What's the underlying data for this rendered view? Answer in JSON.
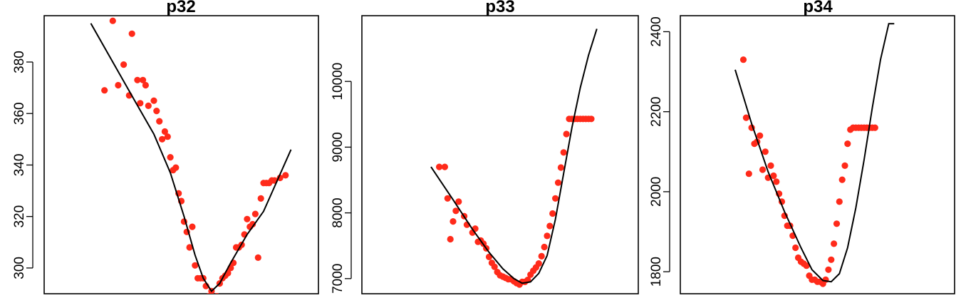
{
  "chart_data": [
    {
      "type": "scatter",
      "title": "p32",
      "yticks": [
        300,
        320,
        340,
        360,
        380
      ],
      "ylim": [
        290,
        398
      ],
      "xlim": [
        0,
        100
      ],
      "series": [
        {
          "kind": "points",
          "color": "#ff2a1a",
          "x": [
            22,
            25,
            27,
            29,
            31,
            32,
            34,
            35,
            36,
            37,
            38,
            40,
            41,
            42,
            43,
            44,
            45,
            46,
            47,
            48,
            49,
            50,
            51,
            52,
            53,
            54,
            55,
            56,
            57,
            58,
            59,
            60,
            61,
            62,
            63,
            64,
            65,
            66,
            67,
            68,
            69,
            70,
            71,
            72,
            73,
            74,
            75,
            76,
            77,
            78,
            79,
            80,
            81,
            82,
            83,
            84,
            86,
            88
          ],
          "y": [
            369,
            396,
            371,
            379,
            367,
            391,
            373,
            364,
            373,
            371,
            363,
            365,
            361,
            357,
            350,
            353,
            351,
            343,
            338,
            339,
            329,
            326,
            318,
            314,
            308,
            316,
            301,
            296,
            296,
            296,
            293,
            289,
            291,
            288,
            289,
            294,
            296,
            297,
            298,
            300,
            302,
            308,
            308,
            309,
            313,
            319,
            316,
            317,
            321,
            304,
            327,
            333,
            333,
            333,
            334,
            334,
            335,
            336
          ]
        },
        {
          "kind": "line",
          "x": [
            17,
            25,
            33,
            40,
            46,
            51,
            55,
            58,
            61,
            64,
            68,
            74,
            80,
            90
          ],
          "y": [
            395,
            380,
            365,
            352,
            337,
            320,
            305,
            296,
            291,
            294,
            302,
            313,
            322,
            346
          ]
        }
      ]
    },
    {
      "type": "scatter",
      "title": "p33",
      "yticks": [
        7000,
        8000,
        9000,
        10000
      ],
      "ylim": [
        6770,
        11000
      ],
      "xlim": [
        0,
        100
      ],
      "series": [
        {
          "kind": "points",
          "color": "#ff2a1a",
          "x": [
            28,
            30,
            31,
            32,
            33,
            34,
            35,
            37,
            38,
            40,
            41,
            42,
            43,
            44,
            45,
            46,
            47,
            48,
            49,
            50,
            51,
            52,
            53,
            54,
            55,
            56,
            57,
            58,
            59,
            60,
            61,
            62,
            63,
            64,
            65,
            66,
            67,
            68,
            69,
            70,
            71,
            72,
            73,
            74,
            75,
            76,
            77,
            78,
            79,
            80,
            81,
            82,
            83
          ],
          "y": [
            8700,
            8700,
            8220,
            7600,
            7870,
            8030,
            8170,
            7950,
            7820,
            7700,
            7760,
            7560,
            7580,
            7530,
            7460,
            7330,
            7240,
            7180,
            7100,
            7050,
            7030,
            7010,
            6990,
            6990,
            6960,
            6930,
            6910,
            6950,
            6950,
            6980,
            7060,
            7120,
            7170,
            7230,
            7340,
            7480,
            7650,
            7800,
            7990,
            8220,
            8460,
            8690,
            8920,
            9200,
            9430,
            9430,
            9430,
            9430,
            9430,
            9430,
            9430,
            9430,
            9430
          ]
        },
        {
          "kind": "line",
          "x": [
            25,
            33,
            40,
            46,
            51,
            55,
            58,
            61,
            64,
            67,
            70,
            73,
            76,
            79,
            82,
            85
          ],
          "y": [
            8700,
            8200,
            7750,
            7400,
            7150,
            7000,
            6930,
            6950,
            7080,
            7350,
            7900,
            8600,
            9300,
            9900,
            10400,
            10800
          ]
        }
      ]
    },
    {
      "type": "scatter",
      "title": "p34",
      "yticks": [
        1800,
        2000,
        2200,
        2400
      ],
      "ylim": [
        1745,
        2440
      ],
      "xlim": [
        0,
        100
      ],
      "series": [
        {
          "kind": "points",
          "color": "#ff2a1a",
          "x": [
            23,
            24,
            25,
            26,
            27,
            28,
            29,
            30,
            31,
            32,
            33,
            34,
            35,
            36,
            37,
            38,
            39,
            40,
            41,
            42,
            43,
            44,
            45,
            46,
            47,
            48,
            49,
            50,
            51,
            52,
            53,
            54,
            55,
            56,
            57,
            58,
            59,
            60,
            61,
            62,
            63,
            64,
            65,
            66,
            67,
            68,
            69,
            70,
            71
          ],
          "y": [
            2330,
            2185,
            2045,
            2160,
            2120,
            2125,
            2140,
            2055,
            2100,
            2035,
            2065,
            2040,
            2025,
            1995,
            1975,
            1940,
            1915,
            1915,
            1890,
            1860,
            1835,
            1825,
            1820,
            1815,
            1790,
            1780,
            1780,
            1775,
            1775,
            1770,
            1780,
            1805,
            1830,
            1870,
            1920,
            1975,
            2030,
            2065,
            2120,
            2155,
            2160,
            2160,
            2160,
            2160,
            2160,
            2160,
            2160,
            2160,
            2160
          ]
        },
        {
          "kind": "line",
          "x": [
            20,
            26,
            32,
            38,
            44,
            48,
            52,
            55,
            58,
            61,
            64,
            67,
            70,
            73,
            76,
            78
          ],
          "y": [
            2305,
            2170,
            2050,
            1950,
            1860,
            1805,
            1778,
            1775,
            1795,
            1860,
            1960,
            2080,
            2210,
            2330,
            2420,
            2420
          ]
        }
      ]
    }
  ]
}
